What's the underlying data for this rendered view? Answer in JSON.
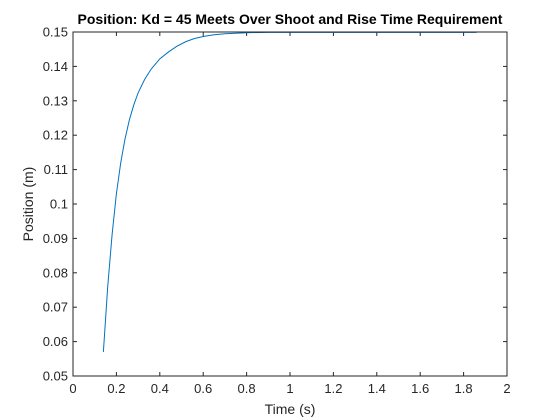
{
  "chart_data": {
    "type": "line",
    "title": "Position: Kd = 45 Meets Over Shoot and Rise Time Requirement",
    "xlabel": "Time (s)",
    "ylabel": "Position (m)",
    "xlim": [
      0,
      2
    ],
    "ylim": [
      0.05,
      0.15
    ],
    "xticks": [
      "0",
      "0.2",
      "0.4",
      "0.6",
      "0.8",
      "1",
      "1.2",
      "1.4",
      "1.6",
      "1.8",
      "2"
    ],
    "yticks": [
      "0.05",
      "0.06",
      "0.07",
      "0.08",
      "0.09",
      "0.1",
      "0.11",
      "0.12",
      "0.13",
      "0.14",
      "0.15"
    ],
    "grid": false,
    "line_color": "#0072BD",
    "series": [
      {
        "x": [
          0.14,
          0.16,
          0.18,
          0.2,
          0.22,
          0.24,
          0.26,
          0.28,
          0.3,
          0.33,
          0.36,
          0.4,
          0.44,
          0.48,
          0.52,
          0.56,
          0.6,
          0.65,
          0.7,
          0.8,
          0.9,
          1.0,
          1.2,
          1.4,
          1.6,
          1.86
        ],
        "y": [
          0.057,
          0.076,
          0.091,
          0.103,
          0.112,
          0.119,
          0.1245,
          0.1288,
          0.1323,
          0.1362,
          0.1392,
          0.1422,
          0.1442,
          0.1459,
          0.1472,
          0.1481,
          0.1487,
          0.1492,
          0.1495,
          0.1498,
          0.1499,
          0.1499,
          0.1499,
          0.1499,
          0.1499,
          0.1499
        ]
      }
    ]
  }
}
